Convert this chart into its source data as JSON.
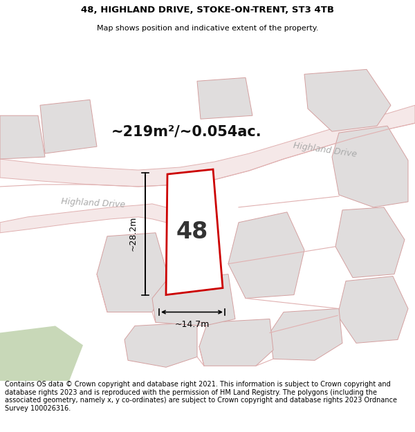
{
  "title_line1": "48, HIGHLAND DRIVE, STOKE-ON-TRENT, ST3 4TB",
  "title_line2": "Map shows position and indicative extent of the property.",
  "footer": "Contains OS data © Crown copyright and database right 2021. This information is subject to Crown copyright and database rights 2023 and is reproduced with the permission of HM Land Registry. The polygons (including the associated geometry, namely x, y co-ordinates) are subject to Crown copyright and database rights 2023 Ordnance Survey 100026316.",
  "area_label": "~219m²/~0.054ac.",
  "plot_number": "48",
  "dim_width": "~14.7m",
  "dim_height": "~28.2m",
  "road_label_left": "Highland Drive",
  "road_label_right": "Highland Drive",
  "map_bg": "#f5f2f2",
  "plot_fill": "#ffffff",
  "plot_stroke": "#cc0000",
  "other_plots_fill": "#e0dddd",
  "other_plots_stroke": "#d4a0a0",
  "road_fill": "#f5e8e8",
  "road_stroke": "#e0b0b0",
  "green_fill": "#c8d8b8",
  "title_fontsize": 9.5,
  "footer_fontsize": 7.0,
  "road_label_color": "#aaaaaa",
  "area_label_fontsize": 15,
  "dim_fontsize": 9,
  "plot_num_fontsize": 24
}
